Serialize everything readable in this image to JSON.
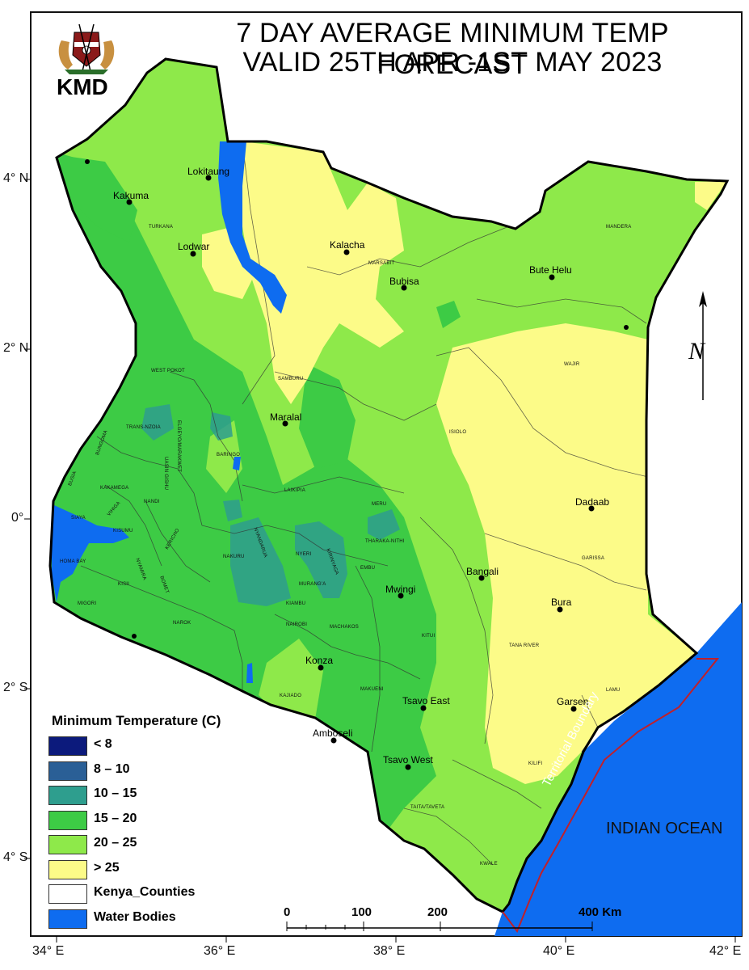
{
  "title": {
    "line1": "7 DAY AVERAGE MINIMUM TEMP FORECAST",
    "line2": "VALID 25TH APR -1ST MAY 2023"
  },
  "logo": {
    "label": "KMD",
    "emblem": "kenya-coat-of-arms-icon"
  },
  "legend": {
    "title": "Minimum Temperature (C)",
    "items": [
      {
        "label": "< 8",
        "color": "#0c1a7c"
      },
      {
        "label": "8 – 10",
        "color": "#2a5f96"
      },
      {
        "label": "10 – 15",
        "color": "#2e9e8e"
      },
      {
        "label": "15 – 20",
        "color": "#3dcb45"
      },
      {
        "label": "20 – 25",
        "color": "#8ee94a"
      },
      {
        "label": "> 25",
        "color": "#fcfb88"
      },
      {
        "label": "Kenya_Counties",
        "color": "#ffffff"
      },
      {
        "label": "Water Bodies",
        "color": "#0e6cf0"
      }
    ]
  },
  "axes": {
    "x_ticks": [
      "34° E",
      "36° E",
      "38° E",
      "40° E",
      "42° E"
    ],
    "y_ticks": [
      "4° N",
      "2° N",
      "0°",
      "2° S",
      "4° S"
    ]
  },
  "scale_bar": {
    "labels": [
      "0",
      "100",
      "200",
      "400 Km"
    ]
  },
  "towns": [
    "Lokitaung",
    "Kakuma",
    "Lodwar",
    "Kalacha",
    "Bubisa",
    "Bute Helu",
    "Maralal",
    "Dadaab",
    "Bangali",
    "Mwingi",
    "Bura",
    "Konza",
    "Tsavo East",
    "Garsen",
    "Amboseli",
    "Tsavo West"
  ],
  "counties": [
    "TURKANA",
    "MARSABIT",
    "MANDERA",
    "WAJIR",
    "WEST POKOT",
    "SAMBURU",
    "ISIOLO",
    "TRANS-NZOIA",
    "ELGEYO/MARAKWET",
    "BARINGO",
    "UASIN GISHU",
    "BUNGOMA",
    "BUSIA",
    "KAKAMEGA",
    "NANDI",
    "VIHIGA",
    "SIAYA",
    "KISUMU",
    "KERICHO",
    "LAIKIPIA",
    "MERU",
    "THARAKA-NITHI",
    "NYANDARUA",
    "NYERI",
    "KIRINYAGA",
    "EMBU",
    "NAKURU",
    "MURANG'A",
    "KIAMBU",
    "NAIROBI",
    "HOMA BAY",
    "KISII",
    "NYAMIRA",
    "BOMET",
    "MIGORI",
    "NAROK",
    "MACHAKOS",
    "KITUI",
    "GARISSA",
    "KAJIADO",
    "MAKUENI",
    "TANA RIVER",
    "LAMU",
    "KILIFI",
    "TAITA/TAVETA",
    "KWALE"
  ],
  "labels": {
    "ocean": "INDIAN OCEAN",
    "boundary": "Territorial Boundary",
    "north_arrow": "N"
  }
}
